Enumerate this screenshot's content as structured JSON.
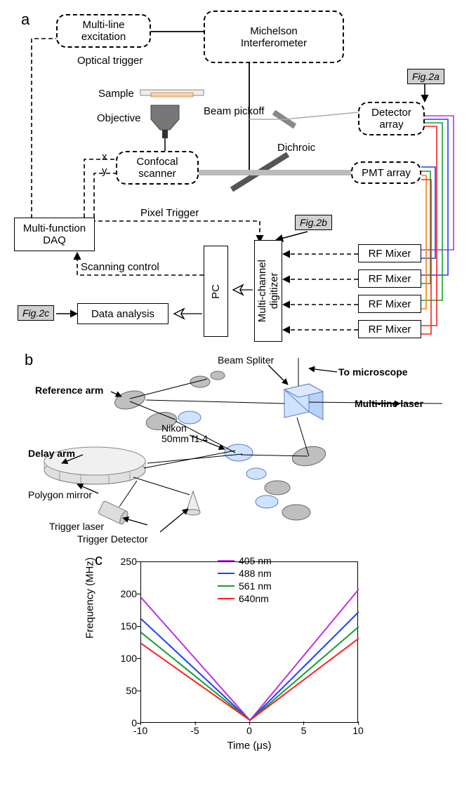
{
  "panelA": {
    "label": "a",
    "boxes": {
      "multiline_excitation": "Multi-line\nexcitation",
      "michelson": "Michelson\nInterferometer",
      "detector_array": "Detector\narray",
      "pmt_array": "PMT array",
      "confocal_scanner": "Confocal\nscanner",
      "multi_daq": "Multi-function\nDAQ",
      "data_analysis": "Data analysis",
      "pc": "PC",
      "digitizer": "Multi-channel\ndigitizer",
      "rf_mixer": "RF Mixer"
    },
    "labels": {
      "optical_trigger": "Optical trigger",
      "sample": "Sample",
      "objective": "Objective",
      "beam_pickoff": "Beam pickoff",
      "dichroic": "Dichroic",
      "x": "x",
      "y": "y",
      "pixel_trigger": "Pixel Trigger",
      "scanning_control": "Scanning control"
    },
    "figrefs": {
      "a": "Fig.2a",
      "b": "Fig.2b",
      "c": "Fig.2c"
    },
    "wire_colors": {
      "c405": "#c030e0",
      "c488": "#2040ff",
      "c561": "#10a030",
      "c640": "#ff2020",
      "orange": "#ff8000"
    }
  },
  "panelB": {
    "label": "b",
    "labels": {
      "reference_arm": "Reference arm",
      "delay_arm": "Delay arm",
      "polygon_mirror": "Polygon mirror",
      "trigger_laser": "Trigger laser",
      "trigger_detector": "Trigger Detector",
      "nikon": "Nikon\n50mm f1.4",
      "beam_splitter": "Beam Spliter",
      "to_microscope": "To microscope",
      "multiline_laser": "Multi-line laser"
    }
  },
  "panelC": {
    "label": "c",
    "ylabel": "Frequency (MHz)",
    "xlabel": "Time (μs)",
    "xlim": [
      -10,
      10
    ],
    "ylim": [
      0,
      250
    ],
    "xticks": [
      -10,
      -5,
      0,
      5,
      10
    ],
    "yticks": [
      0,
      50,
      100,
      150,
      200,
      250
    ],
    "series": [
      {
        "name": "405 nm",
        "color": "#c030e0",
        "points": [
          [
            -10,
            195
          ],
          [
            0,
            5
          ],
          [
            10,
            208
          ]
        ]
      },
      {
        "name": "488 nm",
        "color": "#2040ff",
        "points": [
          [
            -10,
            162
          ],
          [
            0,
            5
          ],
          [
            10,
            173
          ]
        ]
      },
      {
        "name": "561 nm",
        "color": "#10a030",
        "points": [
          [
            -10,
            141
          ],
          [
            0,
            5
          ],
          [
            10,
            150
          ]
        ]
      },
      {
        "name": "640nm",
        "color": "#ff2020",
        "points": [
          [
            -10,
            124
          ],
          [
            0,
            5
          ],
          [
            10,
            132
          ]
        ]
      }
    ],
    "title_fontsize": 14
  }
}
